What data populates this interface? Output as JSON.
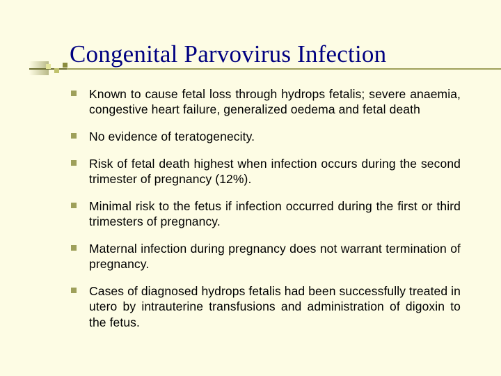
{
  "colors": {
    "background": "#fdfce4",
    "title": "#000080",
    "bullet": "#9ea05a",
    "line": "#9ea05a",
    "text": "#000000"
  },
  "title": "Congenital Parvovirus Infection",
  "bullets": [
    "Known  to  cause fetal loss through  hydrops  fetalis;  severe anaemia,  congestive heart failure, generalized oedema  and fetal death",
    "No evidence of teratogenecity.",
    "Risk  of fetal death highest when infection occurs during  the second trimester of pregnancy (12%).",
    "Minimal risk to the fetus if infection occurred during the first or third trimesters of pregnancy.",
    "Maternal infection during pregnancy does not warrant termination of pregnancy.",
    "Cases of diagnosed hydrops fetalis had been successfully treated in utero by intrauterine transfusions and administration of digoxin to the fetus."
  ]
}
